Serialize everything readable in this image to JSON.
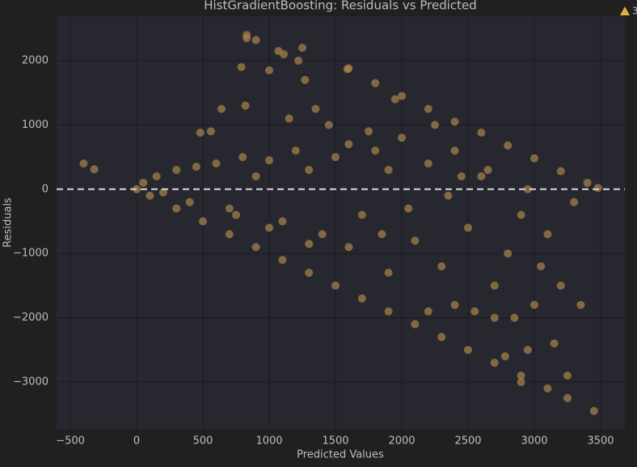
{
  "chart_data": {
    "type": "scatter",
    "title": "HistGradientBoosting: Residuals vs Predicted",
    "xlabel": "Predicted Values",
    "ylabel": "Residuals",
    "color": "#a8844a",
    "opacity": 0.72,
    "grid": true,
    "hline": 0,
    "xlim": [
      -604,
      3683
    ],
    "ylim": [
      -3730,
      2692
    ],
    "xticks": [
      {
        "value": -500,
        "label": "−500"
      },
      0,
      500,
      1000,
      1500,
      2000,
      2500,
      3000,
      3500
    ],
    "yticks": [
      {
        "value": -3000,
        "label": "−3000"
      },
      {
        "value": -2000,
        "label": "−2000"
      },
      {
        "value": -1000,
        "label": "−1000"
      },
      0,
      1000,
      2000
    ],
    "x": [
      100,
      300,
      500,
      700,
      900,
      1100,
      1300,
      1500,
      1700,
      1900,
      2100,
      2300,
      2500,
      2700,
      2900,
      3100,
      3250,
      3450,
      1600,
      1800,
      2000,
      2200,
      2400,
      2600,
      2800,
      3000,
      3200,
      3400,
      3480,
      -400,
      -320,
      830,
      830,
      900,
      1070,
      1110,
      1250,
      1220,
      790,
      820,
      1590,
      1000,
      1270,
      640,
      560,
      480,
      0,
      50,
      150,
      200,
      300,
      400,
      450,
      600,
      700,
      800,
      900,
      1000,
      1100,
      1200,
      1300,
      1400,
      1500,
      1600,
      1700,
      1800,
      1900,
      2000,
      2100,
      2200,
      2300,
      2400,
      2500,
      2600,
      2700,
      2800,
      2850,
      2900,
      2950,
      3000,
      3050,
      3100,
      3200,
      3250,
      2900,
      2700,
      2400,
      2200,
      1900,
      1600,
      1300,
      1000,
      750,
      1150,
      1350,
      1450,
      1750,
      1950,
      2250,
      2450,
      2650,
      2950,
      3300,
      3350,
      1850,
      2050,
      2350,
      2550,
      2780,
      3150
    ],
    "y": [
      -100,
      -300,
      -500,
      -700,
      -900,
      -1100,
      -1300,
      -1500,
      -1700,
      -1900,
      -2100,
      -2300,
      -2500,
      -2700,
      -2900,
      -3100,
      -3250,
      -3450,
      1880,
      1650,
      1450,
      1250,
      1050,
      880,
      680,
      480,
      280,
      100,
      20,
      400,
      310,
      2400,
      2350,
      2320,
      2150,
      2100,
      2200,
      2000,
      1900,
      1300,
      1870,
      1850,
      1700,
      1250,
      900,
      880,
      0,
      100,
      200,
      -50,
      300,
      -200,
      350,
      400,
      -300,
      500,
      200,
      450,
      -500,
      600,
      300,
      -700,
      500,
      700,
      -400,
      600,
      300,
      800,
      -800,
      400,
      -1200,
      600,
      -600,
      200,
      -1500,
      -1000,
      -2000,
      -400,
      -2500,
      -1800,
      -1200,
      -700,
      -1500,
      -2900,
      -3000,
      -2000,
      -1800,
      -1900,
      -1300,
      -900,
      -850,
      -600,
      -400,
      1100,
      1250,
      1000,
      900,
      1400,
      1000,
      200,
      300,
      0,
      -200,
      -1800,
      -700,
      -300,
      -100,
      -1900,
      -2600,
      -2400
    ]
  },
  "warning_badge": "3"
}
